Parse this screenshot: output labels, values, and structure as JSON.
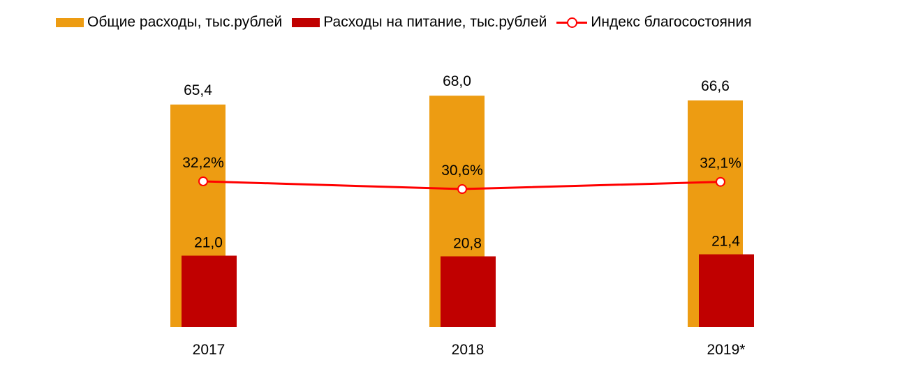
{
  "chart_data": {
    "type": "bar",
    "categories": [
      "2017",
      "2018",
      "2019*"
    ],
    "series": [
      {
        "name": "Общие расходы, тыс.рублей",
        "kind": "bar",
        "color": "#ED9C12",
        "values": [
          65.4,
          68.0,
          66.6
        ],
        "labels": [
          "65,4",
          "68,0",
          "66,6"
        ]
      },
      {
        "name": "Расходы на питание, тыс.рублей",
        "kind": "bar",
        "color": "#C00000",
        "values": [
          21.0,
          20.8,
          21.4
        ],
        "labels": [
          "21,0",
          "20,8",
          "21,4"
        ]
      },
      {
        "name": "Индекс благосостояния",
        "kind": "line",
        "color": "#FF0000",
        "values": [
          32.2,
          30.6,
          32.1
        ],
        "labels": [
          "32,2%",
          "30,6%",
          "32,1%"
        ]
      }
    ],
    "legend_position": "top",
    "grid": false,
    "axes_visible": false
  }
}
